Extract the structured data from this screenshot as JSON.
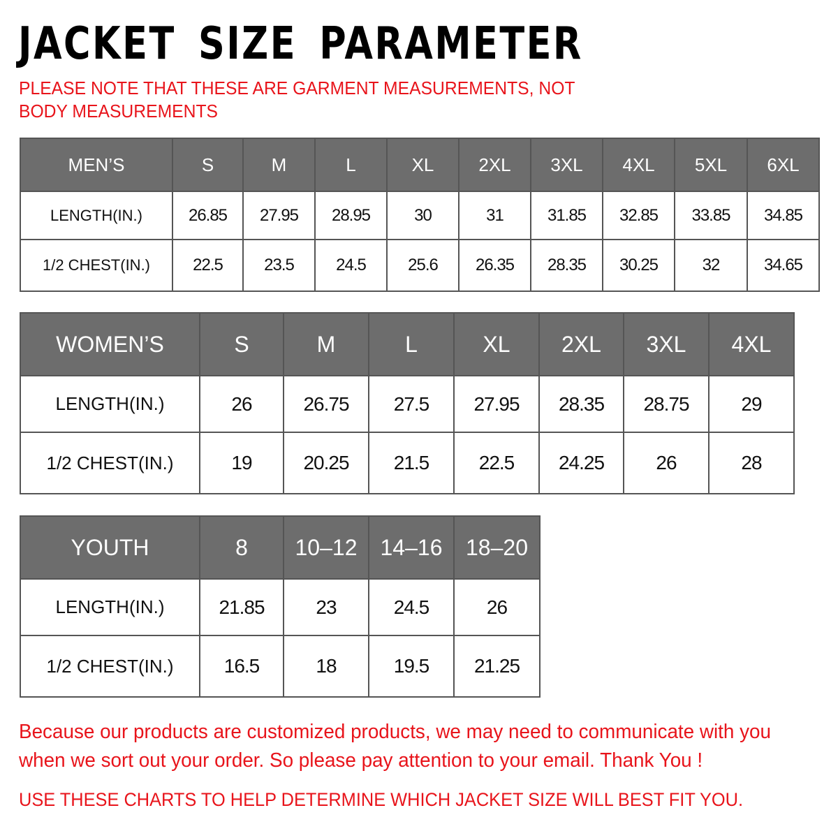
{
  "title": "JACKET SIZE PARAMETER",
  "note": "PLEASE NOTE THAT THESE ARE GARMENT MEASUREMENTS, NOT BODY MEASUREMENTS",
  "colors": {
    "header_bg": "#6d6d6d",
    "accent_red": "#e8141b"
  },
  "tables": {
    "men": {
      "header": [
        "MEN’S",
        "S",
        "M",
        "L",
        "XL",
        "2XL",
        "3XL",
        "4XL",
        "5XL",
        "6XL"
      ],
      "rows": [
        [
          "LENGTH(IN.)",
          "26.85",
          "27.95",
          "28.95",
          "30",
          "31",
          "31.85",
          "32.85",
          "33.85",
          "34.85"
        ],
        [
          "1/2 CHEST(IN.)",
          "22.5",
          "23.5",
          "24.5",
          "25.6",
          "26.35",
          "28.35",
          "30.25",
          "32",
          "34.65"
        ]
      ]
    },
    "women": {
      "header": [
        "WOMEN’S",
        "S",
        "M",
        "L",
        "XL",
        "2XL",
        "3XL",
        "4XL"
      ],
      "rows": [
        [
          "LENGTH(IN.)",
          "26",
          "26.75",
          "27.5",
          "27.95",
          "28.35",
          "28.75",
          "29"
        ],
        [
          "1/2 CHEST(IN.)",
          "19",
          "20.25",
          "21.5",
          "22.5",
          "24.25",
          "26",
          "28"
        ]
      ]
    },
    "youth": {
      "header": [
        "YOUTH",
        "8",
        "10–12",
        "14–16",
        "18–20"
      ],
      "rows": [
        [
          "LENGTH(IN.)",
          "21.85",
          "23",
          "24.5",
          "26"
        ],
        [
          "1/2 CHEST(IN.)",
          "16.5",
          "18",
          "19.5",
          "21.25"
        ]
      ]
    }
  },
  "footer": {
    "message": "Because our products are customized products, we may need to communicate with you when we sort out your order. So please pay attention to your email. Thank You !",
    "tip": "USE THESE CHARTS TO HELP DETERMINE WHICH JACKET SIZE WILL BEST FIT YOU."
  }
}
